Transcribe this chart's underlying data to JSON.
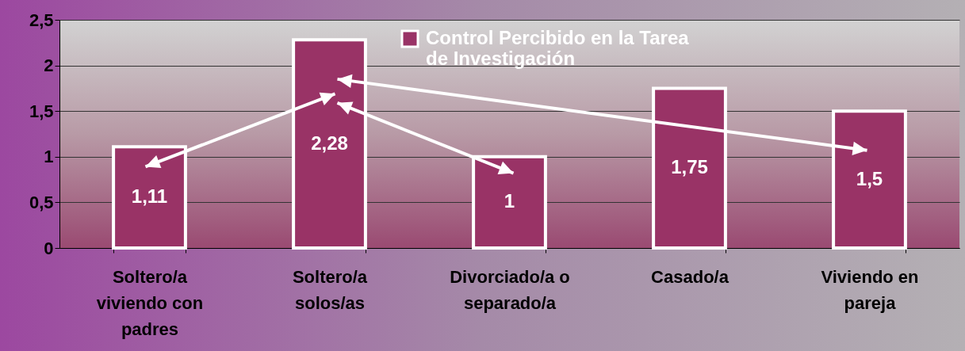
{
  "chart_data": {
    "type": "bar",
    "categories": [
      "Soltero/a viviendo con padres",
      "Soltero/a solos/as",
      "Divorciado/a o separado/a",
      "Casado/a",
      "Viviendo en pareja"
    ],
    "series": [
      {
        "name": "Control Percibido en la Tarea de Investigación",
        "color": "#993366",
        "values": [
          1.11,
          2.28,
          1,
          1.75,
          1.5
        ],
        "value_labels": [
          "1,11",
          "2,28",
          "1",
          "1,75",
          "1,5"
        ]
      }
    ],
    "ylim": [
      0,
      2.5
    ],
    "yticks": [
      0,
      {
        "value": 0.5,
        "label": "0,5"
      },
      1,
      {
        "value": 1.5,
        "label": "1,5"
      },
      2,
      {
        "value": 2.5,
        "label": "2,5"
      }
    ],
    "grid": "y",
    "legend": "top"
  }
}
